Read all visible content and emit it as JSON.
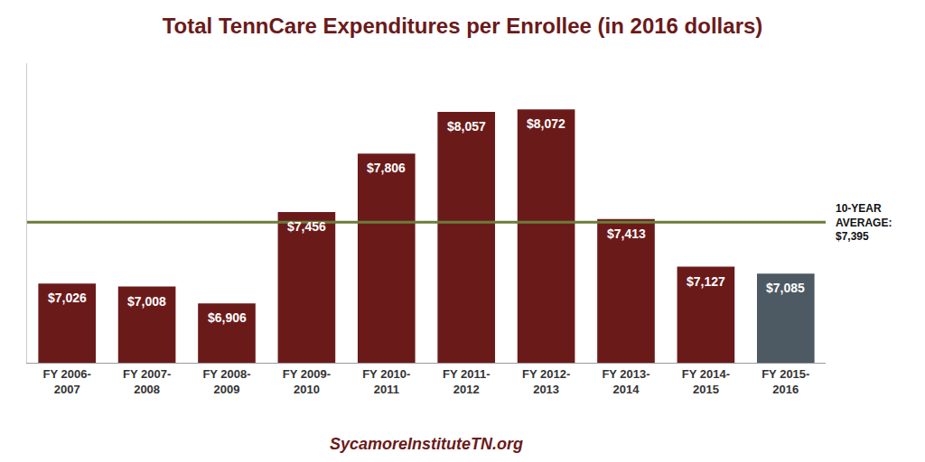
{
  "chart_data": {
    "type": "bar",
    "title": "Total TennCare Expenditures per Enrollee (in 2016 dollars)",
    "categories": [
      "FY 2006-\n2007",
      "FY 2007-\n2008",
      "FY 2008-\n2009",
      "FY 2009-\n2010",
      "FY 2010-\n2011",
      "FY 2011-\n2012",
      "FY 2012-\n2013",
      "FY 2013-\n2014",
      "FY 2014-\n2015",
      "FY 2015-\n2016"
    ],
    "values": [
      7026,
      7008,
      6906,
      7456,
      7806,
      8057,
      8072,
      7413,
      7127,
      7085
    ],
    "colors": [
      "#6B1A1A",
      "#6B1A1A",
      "#6B1A1A",
      "#6B1A1A",
      "#6B1A1A",
      "#6B1A1A",
      "#6B1A1A",
      "#6B1A1A",
      "#6B1A1A",
      "#4D5A63"
    ],
    "value_labels": [
      "$7,026",
      "$7,008",
      "$6,906",
      "$7,456",
      "$7,806",
      "$8,057",
      "$8,072",
      "$7,413",
      "$7,127",
      "$7,085"
    ],
    "data_labels": true,
    "reference_line": {
      "value": 7395,
      "label": "10-YEAR\nAVERAGE:\n$7,395",
      "color": "#6B7C3B"
    },
    "footer": "SycamoreInstituteTN.org",
    "ylim": [
      6550,
      8350
    ],
    "tick_labels": "x",
    "grid": false
  }
}
